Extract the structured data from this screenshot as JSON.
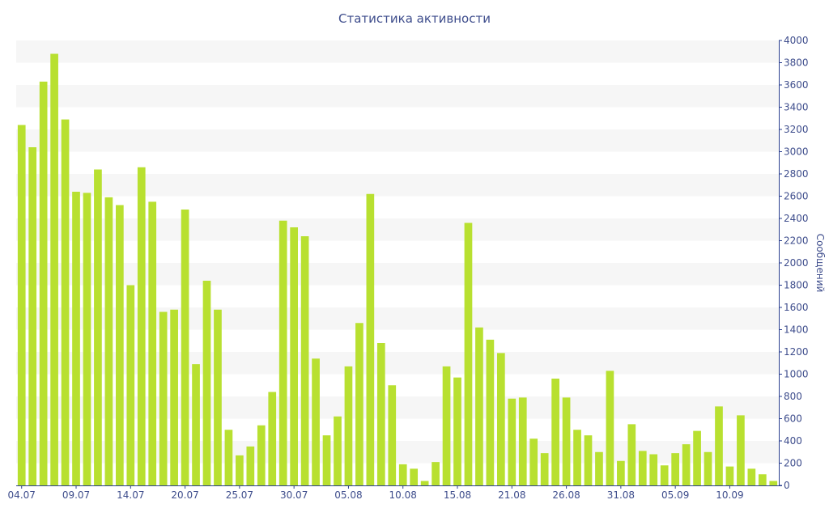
{
  "colors": {
    "bar": "#b8e030",
    "band": "#f6f6f6",
    "axis": "#2a3f8f",
    "text": "#3e4d8c"
  },
  "chart_data": {
    "type": "bar",
    "title": "Статистика активности",
    "ylabel": "Сообщений",
    "xlabel": "",
    "ylim": [
      0,
      4000
    ],
    "y_ticks": [
      0,
      200,
      400,
      600,
      800,
      1000,
      1200,
      1400,
      1600,
      1800,
      2000,
      2200,
      2400,
      2600,
      2800,
      3000,
      3200,
      3400,
      3600,
      3800,
      4000
    ],
    "grid": "alternating horizontal bands",
    "y_axis_side": "right",
    "x_tick_labels": [
      {
        "label": "04.07",
        "index": 0
      },
      {
        "label": "09.07",
        "index": 5
      },
      {
        "label": "14.07",
        "index": 10
      },
      {
        "label": "20.07",
        "index": 15
      },
      {
        "label": "25.07",
        "index": 20
      },
      {
        "label": "30.07",
        "index": 25
      },
      {
        "label": "05.08",
        "index": 30
      },
      {
        "label": "10.08",
        "index": 35
      },
      {
        "label": "15.08",
        "index": 40
      },
      {
        "label": "21.08",
        "index": 45
      },
      {
        "label": "26.08",
        "index": 50
      },
      {
        "label": "31.08",
        "index": 55
      },
      {
        "label": "05.09",
        "index": 60
      },
      {
        "label": "10.09",
        "index": 65
      }
    ],
    "values": [
      3240,
      3040,
      3630,
      3880,
      3290,
      2640,
      2630,
      2840,
      2590,
      2520,
      1800,
      2860,
      2550,
      1560,
      1580,
      2480,
      1090,
      1840,
      1580,
      500,
      270,
      350,
      540,
      840,
      2380,
      2320,
      2240,
      1140,
      450,
      620,
      1070,
      1460,
      2620,
      1280,
      900,
      190,
      150,
      40,
      210,
      1070,
      970,
      2360,
      1420,
      1310,
      1190,
      780,
      790,
      420,
      290,
      960,
      790,
      500,
      450,
      300,
      1030,
      220,
      550,
      310,
      280,
      180,
      290,
      370,
      490,
      300,
      710,
      170,
      630,
      150,
      100,
      40
    ]
  }
}
